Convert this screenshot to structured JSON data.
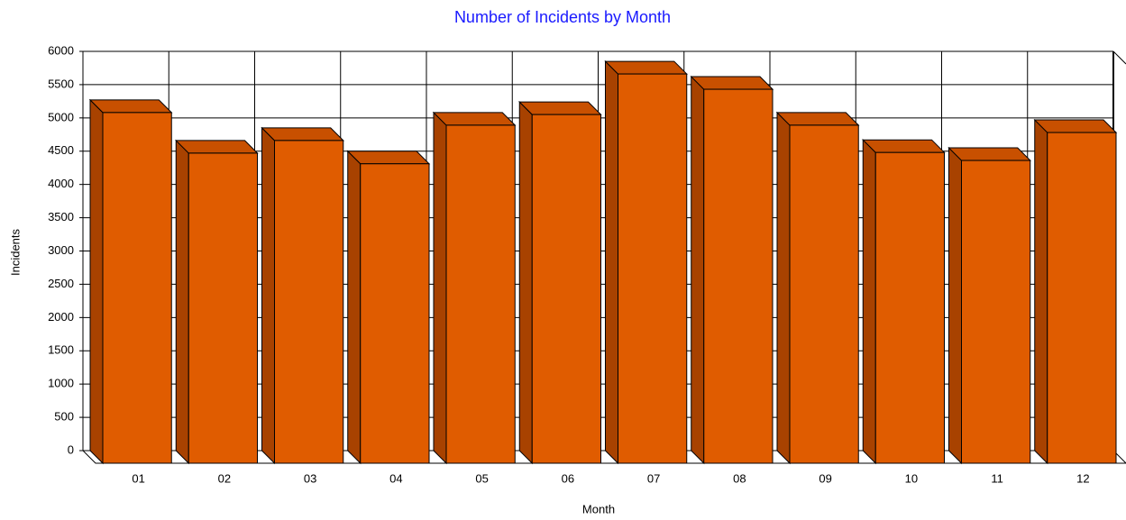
{
  "chart_data": {
    "type": "bar3d",
    "title": "Number of Incidents by Month",
    "x_label": "Month",
    "y_label": "Incidents",
    "categories": [
      "01",
      "02",
      "03",
      "04",
      "05",
      "06",
      "07",
      "08",
      "09",
      "10",
      "11",
      "12"
    ],
    "values": [
      5270,
      4660,
      4850,
      4500,
      5080,
      5240,
      5850,
      5620,
      5080,
      4670,
      4550,
      4970
    ],
    "color": "#e05c00",
    "ylim": [
      0,
      6000
    ],
    "yticks": [
      0,
      500,
      1000,
      1500,
      2000,
      2500,
      3000,
      3500,
      4000,
      4500,
      5000,
      5500,
      6000
    ],
    "grid": true
  }
}
